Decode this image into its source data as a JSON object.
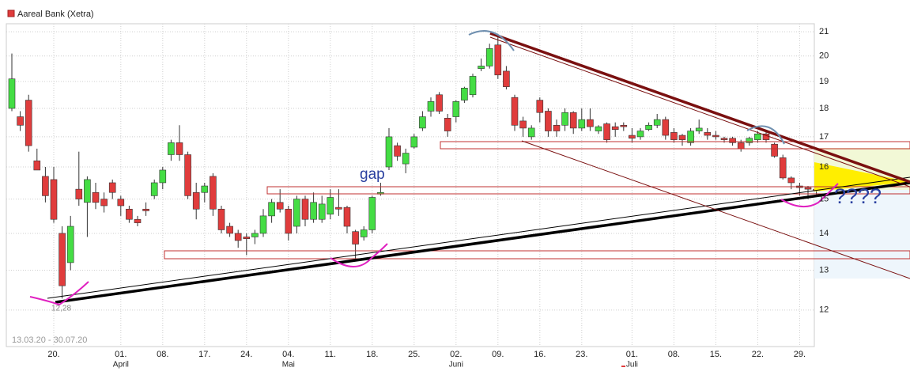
{
  "chart_data": {
    "type": "candlestick",
    "log_scale": true,
    "grid": true,
    "up_color": "#44dd44",
    "down_color": "#e03c3c",
    "range_label": "13.03.20 - 30.07.20",
    "annotations": {
      "low": "12,28",
      "gap": "gap",
      "question": "????"
    },
    "ylim": [
      11.15,
      21.34
    ],
    "yticks": [
      12,
      13,
      14,
      15,
      16,
      17,
      18,
      19,
      20,
      21
    ],
    "categories": [
      null,
      null,
      null,
      null,
      null,
      "20.",
      null,
      null,
      null,
      null,
      null,
      null,
      null,
      "01.",
      null,
      null,
      null,
      null,
      "08.",
      null,
      null,
      null,
      null,
      "17.",
      null,
      null,
      null,
      null,
      "24.",
      null,
      null,
      null,
      null,
      "04.",
      null,
      null,
      null,
      null,
      "11.",
      null,
      null,
      null,
      null,
      "18.",
      null,
      null,
      null,
      null,
      "25.",
      null,
      null,
      null,
      null,
      "02.",
      null,
      null,
      null,
      null,
      "09.",
      null,
      null,
      null,
      null,
      "16.",
      null,
      null,
      null,
      null,
      "23.",
      null,
      null,
      null,
      null,
      null,
      "01.",
      null,
      null,
      null,
      null,
      "08.",
      null,
      null,
      null,
      null,
      "15.",
      null,
      null,
      null,
      null,
      "22.",
      null,
      null,
      null,
      null,
      "29.",
      null,
      null
    ],
    "months": [
      null,
      null,
      null,
      null,
      null,
      null,
      null,
      null,
      null,
      null,
      null,
      null,
      null,
      "April",
      null,
      null,
      null,
      null,
      null,
      null,
      null,
      null,
      null,
      null,
      null,
      null,
      null,
      null,
      null,
      null,
      null,
      null,
      null,
      "Mai",
      null,
      null,
      null,
      null,
      null,
      null,
      null,
      null,
      null,
      null,
      null,
      null,
      null,
      null,
      null,
      null,
      null,
      null,
      null,
      "Juni",
      null,
      null,
      null,
      null,
      null,
      null,
      null,
      null,
      null,
      null,
      null,
      null,
      null,
      null,
      null,
      null,
      null,
      null,
      null,
      null,
      "Juli",
      null,
      null,
      null,
      null,
      null,
      null,
      null,
      null,
      null,
      null,
      null,
      null,
      null,
      null,
      null,
      null,
      null,
      null,
      null,
      null,
      null,
      null
    ],
    "series": [
      {
        "name": "Aareal Bank (Xetra)",
        "color": "#e03c3c",
        "open": [
          18.0,
          17.7,
          18.3,
          16.2,
          15.7,
          15.6,
          14.0,
          13.2,
          15.3,
          14.9,
          15.2,
          15.0,
          15.5,
          15.0,
          14.7,
          14.4,
          14.7,
          15.1,
          15.5,
          16.4,
          16.8,
          16.4,
          15.2,
          15.2,
          15.7,
          14.7,
          14.2,
          14.0,
          13.9,
          13.9,
          14.0,
          14.5,
          14.9,
          14.7,
          14.2,
          15.0,
          14.4,
          14.4,
          14.55,
          14.75,
          14.75,
          14.05,
          13.9,
          14.1,
          15.15,
          16.0,
          16.7,
          16.1,
          16.65,
          17.3,
          17.9,
          18.5,
          17.65,
          17.7,
          18.3,
          18.5,
          19.5,
          19.6,
          20.45,
          19.4,
          18.4,
          17.55,
          17.0,
          18.3,
          17.9,
          17.4,
          17.4,
          17.85,
          17.3,
          17.6,
          17.2,
          17.45,
          17.35,
          17.4,
          17.05,
          17.0,
          17.25,
          17.4,
          17.6,
          17.15,
          17.05,
          16.8,
          17.2,
          17.15,
          17.05,
          16.95,
          16.95,
          16.8,
          16.8,
          16.9,
          17.1,
          16.75,
          16.3,
          15.65,
          15.4,
          15.35,
          15.3
        ],
        "close": [
          19.1,
          17.4,
          16.7,
          15.9,
          15.1,
          14.4,
          12.6,
          14.2,
          15.0,
          15.6,
          14.9,
          14.8,
          15.2,
          14.8,
          14.4,
          14.3,
          14.65,
          15.5,
          15.9,
          16.8,
          16.4,
          15.1,
          14.7,
          15.4,
          14.7,
          14.1,
          14.0,
          13.8,
          13.85,
          14.0,
          14.5,
          14.9,
          14.7,
          14.0,
          15.0,
          14.4,
          14.9,
          14.85,
          15.05,
          14.7,
          14.2,
          13.7,
          14.1,
          15.05,
          15.2,
          17.0,
          16.35,
          16.45,
          17.0,
          17.7,
          18.25,
          17.9,
          17.2,
          18.25,
          18.75,
          19.2,
          19.6,
          20.3,
          19.25,
          18.8,
          17.4,
          17.3,
          17.3,
          17.85,
          17.2,
          17.2,
          17.85,
          17.3,
          17.6,
          17.35,
          17.35,
          16.9,
          17.25,
          17.35,
          16.95,
          17.2,
          17.4,
          17.6,
          17.05,
          16.9,
          16.9,
          17.2,
          17.3,
          17.05,
          17.0,
          16.9,
          16.8,
          16.6,
          16.95,
          17.1,
          16.9,
          16.35,
          15.65,
          15.5,
          15.35,
          15.3,
          15.25
        ],
        "high": [
          20.1,
          17.9,
          18.5,
          16.6,
          16.0,
          16.0,
          14.2,
          14.5,
          16.5,
          15.7,
          15.5,
          15.2,
          15.6,
          15.1,
          14.8,
          14.5,
          14.9,
          15.6,
          16.0,
          16.9,
          17.4,
          16.5,
          15.5,
          15.5,
          15.8,
          14.8,
          14.3,
          14.1,
          14.0,
          14.1,
          14.7,
          15.0,
          15.3,
          14.8,
          15.1,
          15.1,
          15.2,
          15.1,
          15.3,
          15.3,
          14.8,
          14.1,
          14.2,
          15.1,
          15.5,
          17.3,
          16.8,
          16.6,
          17.1,
          17.9,
          18.4,
          18.6,
          17.8,
          18.3,
          18.8,
          19.3,
          19.9,
          20.5,
          20.9,
          19.6,
          18.5,
          17.7,
          17.4,
          18.4,
          18.0,
          17.6,
          18.0,
          17.9,
          18.0,
          18.0,
          17.4,
          17.5,
          17.5,
          17.5,
          17.3,
          17.3,
          17.5,
          17.8,
          17.7,
          17.3,
          17.1,
          17.3,
          17.6,
          17.3,
          17.2,
          17.0,
          17.0,
          16.9,
          17.0,
          17.2,
          17.2,
          16.8,
          16.4,
          15.7,
          15.5,
          15.4,
          15.4
        ],
        "low": [
          17.9,
          17.2,
          16.5,
          15.9,
          14.9,
          14.3,
          12.28,
          13.0,
          14.8,
          13.9,
          14.7,
          14.6,
          15.0,
          14.5,
          14.3,
          14.2,
          14.5,
          15.0,
          15.3,
          16.2,
          16.2,
          15.0,
          14.4,
          14.9,
          14.5,
          14.0,
          13.9,
          13.6,
          13.4,
          13.7,
          13.9,
          14.3,
          14.6,
          13.8,
          14.0,
          14.2,
          14.3,
          14.3,
          14.4,
          14.5,
          14.0,
          13.3,
          13.8,
          14.0,
          15.1,
          15.9,
          16.2,
          15.8,
          16.6,
          17.2,
          17.7,
          17.8,
          17.0,
          17.5,
          18.2,
          18.4,
          19.4,
          19.5,
          19.1,
          18.7,
          17.2,
          17.0,
          16.9,
          17.5,
          17.0,
          17.0,
          17.2,
          17.1,
          17.2,
          17.2,
          17.1,
          16.8,
          17.0,
          17.2,
          16.8,
          16.9,
          17.2,
          17.3,
          16.9,
          16.8,
          16.7,
          16.7,
          17.1,
          16.9,
          16.9,
          16.8,
          16.7,
          16.5,
          16.7,
          16.8,
          16.8,
          16.3,
          15.6,
          15.3,
          15.1,
          15.0,
          15.1
        ]
      }
    ]
  }
}
